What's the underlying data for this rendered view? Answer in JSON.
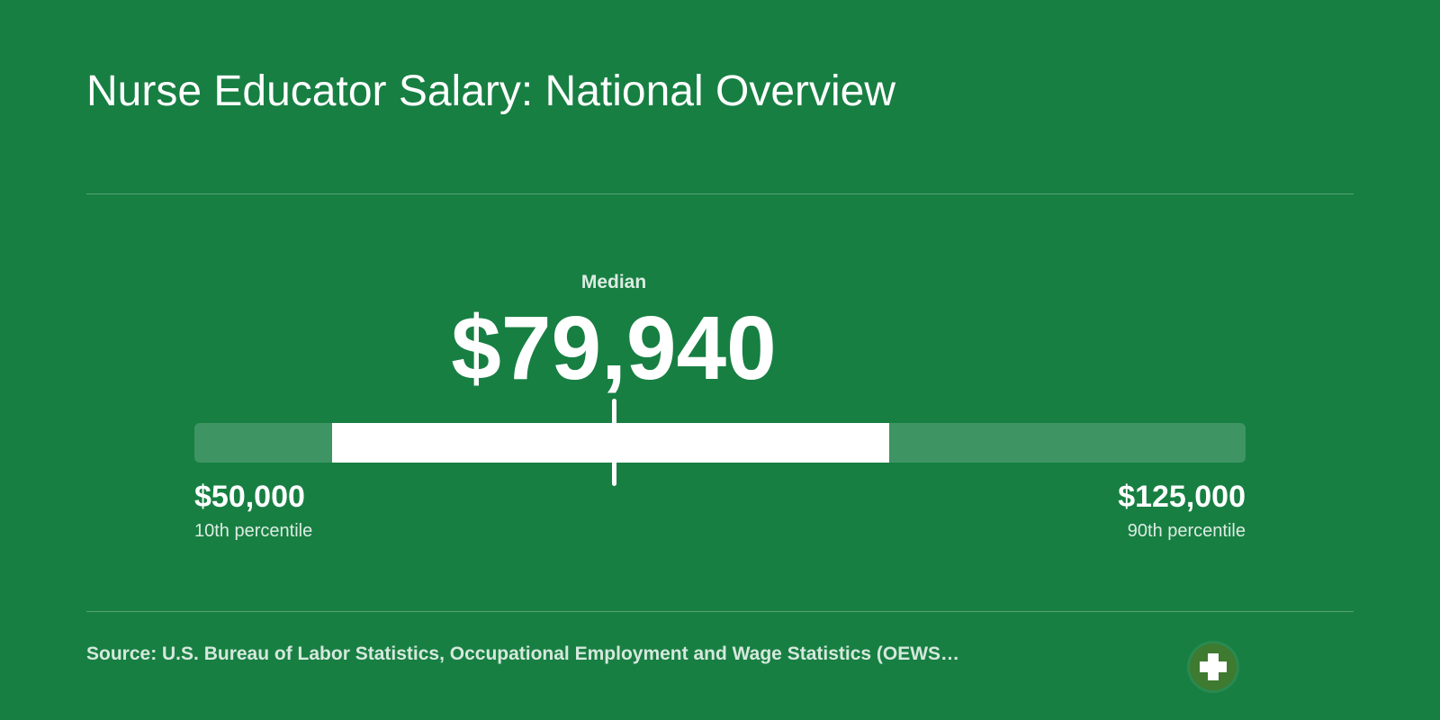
{
  "header": {
    "title": "Nurse Educator Salary: National Overview"
  },
  "salary": {
    "median_label": "Median",
    "median_value": "$79,940",
    "low": {
      "value": "$50,000",
      "caption": "10th percentile"
    },
    "high": {
      "value": "$125,000",
      "caption": "90th percentile"
    },
    "range": {
      "min": 50000,
      "max": 125000,
      "median": 79940,
      "band_start": 59800,
      "band_end": 99600
    }
  },
  "footer": {
    "source": "Source: U.S. Bureau of Labor Statistics, Occupational Employment and Wage Statistics (OEWS…",
    "logo_icon": "medical-cross-icon"
  },
  "colors": {
    "background": "#177f42",
    "track": "#3f9464",
    "fill": "#ffffff",
    "logo": "#3e7a2f"
  }
}
